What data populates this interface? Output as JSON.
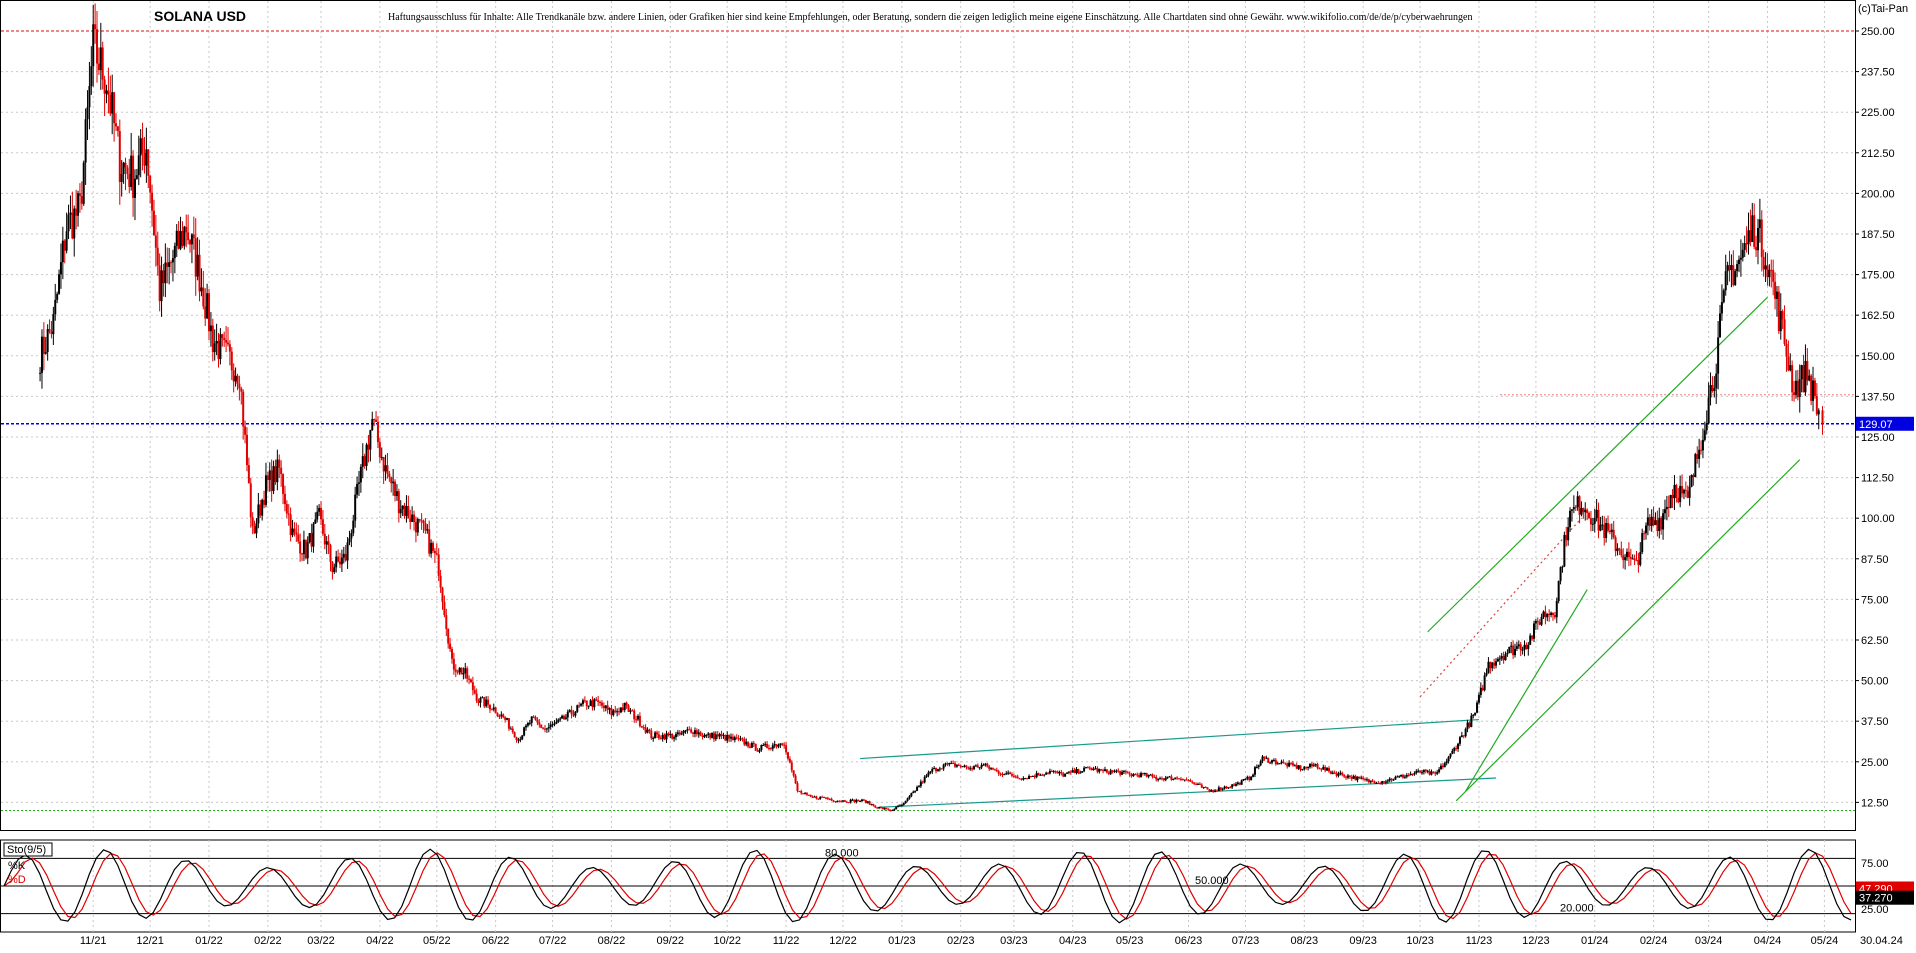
{
  "header": {
    "title": "SOLANA USD",
    "disclaimer": "Haftungsausschluss für Inhalte: Alle Trendkanäle bzw. andere Linien, oder Grafiken hier sind keine Empfehlungen, oder Beratung, sondern die zeigen lediglich meine eigene Einschätzung. Alle Chartdaten sind ohne Gewähr.  www.wikifolio.com/de/de/p/cyberwaehrungen",
    "copyright": "(c)Tai-Pan"
  },
  "price_panel": {
    "current_price_label": "129.07",
    "current_price": 129.07,
    "resistance_red": 250,
    "support_green": 10,
    "aux_red_level": 138,
    "colors": {
      "up": "#000000",
      "down": "#e00000",
      "grid": "#c8c8c8",
      "price_line": "#0000e0",
      "channel_green": "#22aa22",
      "channel_teal": "#1a9a8a",
      "red_line": "#e04040"
    }
  },
  "indicator_panel": {
    "name": "Sto(9/5)",
    "k_label": "%K",
    "d_label": "%D",
    "level_80": "80.000",
    "level_50": "50.000",
    "level_20": "20.000",
    "k_value_label": "37.270",
    "d_value_label": "47.290",
    "y_ticks": [
      "75.00",
      "25.00"
    ],
    "colors": {
      "k": "#000000",
      "d": "#e00000"
    }
  },
  "chart_data": [
    {
      "type": "candlestick",
      "title": "SOLANA USD",
      "y_ticks": [
        "250.00",
        "237.50",
        "225.00",
        "212.50",
        "200.00",
        "187.50",
        "175.00",
        "162.50",
        "150.00",
        "137.50",
        "125.00",
        "112.50",
        "100.00",
        "87.50",
        "75.00",
        "62.50",
        "50.00",
        "37.50",
        "25.00",
        "12.50"
      ],
      "ylim": [
        4,
        254
      ],
      "x_ticks": [
        "11/21",
        "12/21",
        "01/22",
        "02/22",
        "03/22",
        "04/22",
        "05/22",
        "06/22",
        "07/22",
        "08/22",
        "09/22",
        "10/22",
        "11/22",
        "12/22",
        "01/23",
        "02/23",
        "03/23",
        "04/23",
        "05/23",
        "06/23",
        "07/23",
        "08/23",
        "09/23",
        "10/23",
        "11/23",
        "12/23",
        "01/24",
        "02/24",
        "03/24",
        "04/24",
        "05/24"
      ],
      "last_date_label": "30.04.24",
      "weekly_close": [
        [
          "2021-10-04",
          150
        ],
        [
          "2021-10-11",
          160
        ],
        [
          "2021-10-18",
          190
        ],
        [
          "2021-10-25",
          195
        ],
        [
          "2021-11-01",
          245
        ],
        [
          "2021-11-08",
          235
        ],
        [
          "2021-11-15",
          210
        ],
        [
          "2021-11-22",
          205
        ],
        [
          "2021-11-29",
          215
        ],
        [
          "2021-12-06",
          170
        ],
        [
          "2021-12-13",
          180
        ],
        [
          "2021-12-20",
          190
        ],
        [
          "2021-12-27",
          175
        ],
        [
          "2022-01-03",
          155
        ],
        [
          "2022-01-10",
          150
        ],
        [
          "2022-01-17",
          145
        ],
        [
          "2022-01-24",
          95
        ],
        [
          "2022-01-31",
          110
        ],
        [
          "2022-02-07",
          115
        ],
        [
          "2022-02-14",
          95
        ],
        [
          "2022-02-21",
          90
        ],
        [
          "2022-02-28",
          100
        ],
        [
          "2022-03-07",
          85
        ],
        [
          "2022-03-14",
          88
        ],
        [
          "2022-03-21",
          110
        ],
        [
          "2022-03-28",
          130
        ],
        [
          "2022-04-04",
          115
        ],
        [
          "2022-04-11",
          105
        ],
        [
          "2022-04-18",
          100
        ],
        [
          "2022-04-25",
          95
        ],
        [
          "2022-05-02",
          85
        ],
        [
          "2022-05-09",
          55
        ],
        [
          "2022-05-16",
          52
        ],
        [
          "2022-05-23",
          44
        ],
        [
          "2022-05-30",
          42
        ],
        [
          "2022-06-06",
          38
        ],
        [
          "2022-06-13",
          32
        ],
        [
          "2022-06-20",
          38
        ],
        [
          "2022-06-27",
          35
        ],
        [
          "2022-07-04",
          37
        ],
        [
          "2022-07-11",
          40
        ],
        [
          "2022-07-18",
          43
        ],
        [
          "2022-07-25",
          43
        ],
        [
          "2022-08-01",
          40
        ],
        [
          "2022-08-08",
          42
        ],
        [
          "2022-08-15",
          38
        ],
        [
          "2022-08-22",
          33
        ],
        [
          "2022-08-29",
          33
        ],
        [
          "2022-09-05",
          33
        ],
        [
          "2022-09-12",
          35
        ],
        [
          "2022-09-19",
          33
        ],
        [
          "2022-09-26",
          33
        ],
        [
          "2022-10-03",
          32
        ],
        [
          "2022-10-10",
          31
        ],
        [
          "2022-10-17",
          29
        ],
        [
          "2022-10-24",
          30
        ],
        [
          "2022-10-31",
          31
        ],
        [
          "2022-11-07",
          16
        ],
        [
          "2022-11-14",
          14
        ],
        [
          "2022-11-21",
          14
        ],
        [
          "2022-11-28",
          13
        ],
        [
          "2022-12-05",
          13
        ],
        [
          "2022-12-12",
          13
        ],
        [
          "2022-12-19",
          11
        ],
        [
          "2022-12-26",
          10
        ],
        [
          "2023-01-02",
          12
        ],
        [
          "2023-01-09",
          17
        ],
        [
          "2023-01-16",
          22
        ],
        [
          "2023-01-23",
          24
        ],
        [
          "2023-01-30",
          24
        ],
        [
          "2023-02-06",
          23
        ],
        [
          "2023-02-13",
          24
        ],
        [
          "2023-02-20",
          22
        ],
        [
          "2023-02-27",
          21
        ],
        [
          "2023-03-06",
          20
        ],
        [
          "2023-03-13",
          21
        ],
        [
          "2023-03-20",
          22
        ],
        [
          "2023-03-27",
          21
        ],
        [
          "2023-04-03",
          22
        ],
        [
          "2023-04-10",
          23
        ],
        [
          "2023-04-17",
          22
        ],
        [
          "2023-04-24",
          22
        ],
        [
          "2023-05-01",
          21
        ],
        [
          "2023-05-08",
          21
        ],
        [
          "2023-05-15",
          20
        ],
        [
          "2023-05-22",
          20
        ],
        [
          "2023-05-29",
          20
        ],
        [
          "2023-06-05",
          18
        ],
        [
          "2023-06-12",
          16
        ],
        [
          "2023-06-19",
          17
        ],
        [
          "2023-06-26",
          18
        ],
        [
          "2023-07-03",
          20
        ],
        [
          "2023-07-10",
          26
        ],
        [
          "2023-07-17",
          25
        ],
        [
          "2023-07-24",
          24
        ],
        [
          "2023-07-31",
          23
        ],
        [
          "2023-08-07",
          24
        ],
        [
          "2023-08-14",
          22
        ],
        [
          "2023-08-21",
          21
        ],
        [
          "2023-08-28",
          20
        ],
        [
          "2023-09-04",
          19
        ],
        [
          "2023-09-11",
          19
        ],
        [
          "2023-09-18",
          20
        ],
        [
          "2023-09-25",
          21
        ],
        [
          "2023-10-02",
          22
        ],
        [
          "2023-10-09",
          21
        ],
        [
          "2023-10-16",
          26
        ],
        [
          "2023-10-23",
          33
        ],
        [
          "2023-10-30",
          40
        ],
        [
          "2023-11-06",
          55
        ],
        [
          "2023-11-13",
          58
        ],
        [
          "2023-11-20",
          60
        ],
        [
          "2023-11-27",
          62
        ],
        [
          "2023-12-04",
          70
        ],
        [
          "2023-12-11",
          72
        ],
        [
          "2023-12-18",
          100
        ],
        [
          "2023-12-25",
          105
        ],
        [
          "2024-01-01",
          100
        ],
        [
          "2024-01-08",
          95
        ],
        [
          "2024-01-15",
          90
        ],
        [
          "2024-01-22",
          85
        ],
        [
          "2024-01-29",
          98
        ],
        [
          "2024-02-05",
          100
        ],
        [
          "2024-02-12",
          110
        ],
        [
          "2024-02-19",
          105
        ],
        [
          "2024-02-26",
          125
        ],
        [
          "2024-03-04",
          145
        ],
        [
          "2024-03-11",
          175
        ],
        [
          "2024-03-18",
          180
        ],
        [
          "2024-03-25",
          190
        ],
        [
          "2024-04-01",
          180
        ],
        [
          "2024-04-08",
          160
        ],
        [
          "2024-04-15",
          140
        ],
        [
          "2024-04-22",
          145
        ],
        [
          "2024-04-29",
          130
        ]
      ]
    },
    {
      "type": "line",
      "title": "Sto(9/5)",
      "series": [
        {
          "name": "%K"
        },
        {
          "name": "%D"
        }
      ],
      "y_ticks": [
        75,
        25
      ],
      "ylim": [
        0,
        100
      ],
      "reference_levels": [
        80,
        50,
        20
      ],
      "last_values": {
        "%K": 37.27,
        "%D": 47.29
      }
    }
  ]
}
